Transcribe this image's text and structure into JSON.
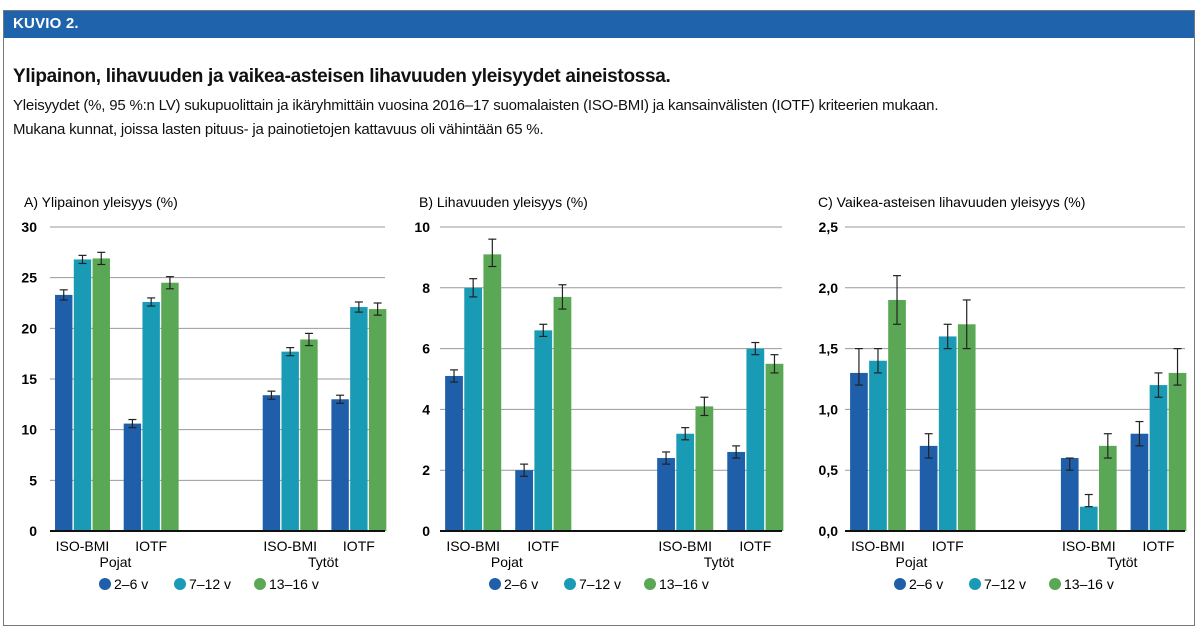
{
  "header": {
    "label": "KUVIO 2.",
    "title": "Ylipainon, lihavuuden ja vaikea-asteisen lihavuuden yleisyydet aineistossa.",
    "subtitle_line1": "Yleisyydet (%, 95 %:n LV) sukupuolittain ja ikäryhmittäin vuosina 2016–17 suomalaisten (ISO-BMI) ja kansainvälisten (IOTF) kriteerien mukaan.",
    "subtitle_line2": "Mukana kunnat, joissa lasten pituus- ja painotietojen kattavuus oli vähintään 65 %."
  },
  "colors": {
    "banner": "#1f63ad",
    "s1": "#1f5ea8",
    "s2": "#1a9bb5",
    "s3": "#5aa855"
  },
  "chart_data": [
    {
      "type": "bar",
      "title": "A) Ylipainon yleisyys (%)",
      "ylim": [
        0,
        30
      ],
      "yticks": [
        "0",
        "5",
        "10",
        "15",
        "20",
        "25",
        "30"
      ],
      "tick_values": [
        0,
        5,
        10,
        15,
        20,
        25,
        30
      ],
      "categories": [
        "ISO-BMI",
        "IOTF",
        "ISO-BMI",
        "IOTF"
      ],
      "groups": [
        "Pojat",
        "Tytöt"
      ],
      "series": [
        {
          "name": "2–6 v",
          "values": [
            23.3,
            10.6,
            13.4,
            13.0
          ],
          "ci": [
            [
              22.8,
              23.8
            ],
            [
              10.2,
              11.0
            ],
            [
              13.0,
              13.8
            ],
            [
              12.6,
              13.4
            ]
          ]
        },
        {
          "name": "7–12 v",
          "values": [
            26.8,
            22.6,
            17.7,
            22.1
          ],
          "ci": [
            [
              26.4,
              27.2
            ],
            [
              22.2,
              23.0
            ],
            [
              17.3,
              18.1
            ],
            [
              21.6,
              22.6
            ]
          ]
        },
        {
          "name": "13–16 v",
          "values": [
            26.9,
            24.5,
            18.9,
            21.9
          ],
          "ci": [
            [
              26.3,
              27.5
            ],
            [
              23.9,
              25.1
            ],
            [
              18.3,
              19.5
            ],
            [
              21.3,
              22.5
            ]
          ]
        }
      ],
      "legend_position": "bottom"
    },
    {
      "type": "bar",
      "title": "B) Lihavuuden yleisyys (%)",
      "ylim": [
        0,
        10
      ],
      "yticks": [
        "0",
        "2",
        "4",
        "6",
        "8",
        "10"
      ],
      "tick_values": [
        0,
        2,
        4,
        6,
        8,
        10
      ],
      "categories": [
        "ISO-BMI",
        "IOTF",
        "ISO-BMI",
        "IOTF"
      ],
      "groups": [
        "Pojat",
        "Tytöt"
      ],
      "series": [
        {
          "name": "2–6 v",
          "values": [
            5.1,
            2.0,
            2.4,
            2.6
          ],
          "ci": [
            [
              4.9,
              5.3
            ],
            [
              1.8,
              2.2
            ],
            [
              2.2,
              2.6
            ],
            [
              2.4,
              2.8
            ]
          ]
        },
        {
          "name": "7–12 v",
          "values": [
            8.0,
            6.6,
            3.2,
            6.0
          ],
          "ci": [
            [
              7.7,
              8.3
            ],
            [
              6.4,
              6.8
            ],
            [
              3.0,
              3.4
            ],
            [
              5.8,
              6.2
            ]
          ]
        },
        {
          "name": "13–16 v",
          "values": [
            9.1,
            7.7,
            4.1,
            5.5
          ],
          "ci": [
            [
              8.7,
              9.6
            ],
            [
              7.3,
              8.1
            ],
            [
              3.8,
              4.4
            ],
            [
              5.2,
              5.8
            ]
          ]
        }
      ],
      "legend_position": "bottom"
    },
    {
      "type": "bar",
      "title": "C) Vaikea-asteisen lihavuuden yleisyys (%)",
      "ylim": [
        0,
        2.5
      ],
      "yticks": [
        "0,0",
        "0,5",
        "1,0",
        "1,5",
        "2,0",
        "2,5"
      ],
      "tick_values": [
        0,
        0.5,
        1.0,
        1.5,
        2.0,
        2.5
      ],
      "categories": [
        "ISO-BMI",
        "IOTF",
        "ISO-BMI",
        "IOTF"
      ],
      "groups": [
        "Pojat",
        "Tytöt"
      ],
      "series": [
        {
          "name": "2–6 v",
          "values": [
            1.3,
            0.7,
            0.6,
            0.8
          ],
          "ci": [
            [
              1.2,
              1.5
            ],
            [
              0.6,
              0.8
            ],
            [
              0.5,
              0.6
            ],
            [
              0.7,
              0.9
            ]
          ]
        },
        {
          "name": "7–12 v",
          "values": [
            1.4,
            1.6,
            0.2,
            1.2
          ],
          "ci": [
            [
              1.3,
              1.5
            ],
            [
              1.5,
              1.7
            ],
            [
              0.2,
              0.3
            ],
            [
              1.1,
              1.3
            ]
          ]
        },
        {
          "name": "13–16 v",
          "values": [
            1.9,
            1.7,
            0.7,
            1.3
          ],
          "ci": [
            [
              1.7,
              2.1
            ],
            [
              1.5,
              1.9
            ],
            [
              0.6,
              0.8
            ],
            [
              1.2,
              1.5
            ]
          ]
        }
      ],
      "legend_position": "bottom"
    }
  ]
}
